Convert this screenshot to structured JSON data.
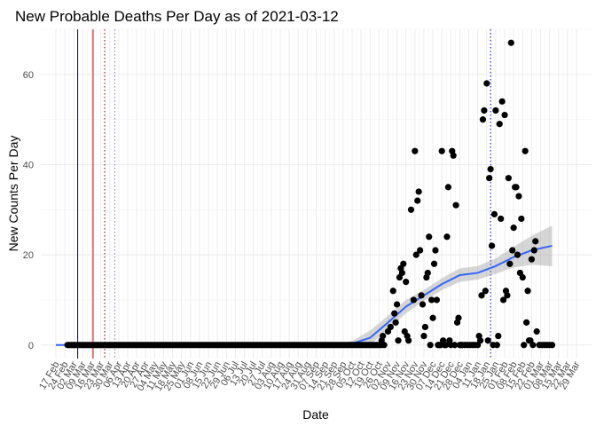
{
  "chart_data": {
    "type": "scatter",
    "title": "New Probable Deaths Per Day as of 2021-03-12",
    "xlabel": "Date",
    "ylabel": "New Counts Per Day",
    "ylim": [
      -3,
      70
    ],
    "yticks": [
      0,
      20,
      40,
      60
    ],
    "x_start": "2020-02-17",
    "x_end": "2021-03-29",
    "xtick_labels": [
      "17 Feb",
      "24 Feb",
      "02 Mar",
      "09 Mar",
      "16 Mar",
      "23 Mar",
      "30 Mar",
      "06 Apr",
      "13 Apr",
      "20 Apr",
      "27 Apr",
      "04 May",
      "11 May",
      "18 May",
      "25 May",
      "01 Jun",
      "08 Jun",
      "15 Jun",
      "22 Jun",
      "29 Jun",
      "06 Jul",
      "13 Jul",
      "20 Jul",
      "27 Jul",
      "03 Aug",
      "10 Aug",
      "17 Aug",
      "24 Aug",
      "31 Aug",
      "07 Sep",
      "14 Sep",
      "21 Sep",
      "28 Sep",
      "05 Oct",
      "12 Oct",
      "19 Oct",
      "26 Oct",
      "02 Nov",
      "09 Nov",
      "16 Nov",
      "23 Nov",
      "30 Nov",
      "07 Dec",
      "14 Dec",
      "21 Dec",
      "28 Dec",
      "04 Jan",
      "11 Jan",
      "18 Jan",
      "25 Jan",
      "01 Feb",
      "08 Feb",
      "15 Feb",
      "22 Feb",
      "01 Mar",
      "08 Mar",
      "15 Mar",
      "22 Mar",
      "29 Mar"
    ],
    "grid": true,
    "reference_lines": [
      {
        "date": "2020-03-05",
        "color": "#00008B",
        "style": "solid"
      },
      {
        "date": "2020-03-17",
        "color": "#CC0000",
        "style": "solid"
      },
      {
        "date": "2020-03-26",
        "color": "#8B0000",
        "style": "dotted"
      },
      {
        "date": "2020-04-03",
        "color": "#9370DB",
        "style": "dotted"
      },
      {
        "date": "2021-01-21",
        "color": "#0000CD",
        "style": "dotted"
      }
    ],
    "series": [
      {
        "name": "new_probable_deaths",
        "type": "scatter",
        "color": "#000000",
        "points": [
          [
            "2020-10-28",
            1
          ],
          [
            "2020-10-29",
            2
          ],
          [
            "2020-10-30",
            0
          ],
          [
            "2020-11-02",
            3
          ],
          [
            "2020-11-04",
            4
          ],
          [
            "2020-11-06",
            12
          ],
          [
            "2020-11-07",
            7
          ],
          [
            "2020-11-08",
            5
          ],
          [
            "2020-11-09",
            9
          ],
          [
            "2020-11-10",
            1
          ],
          [
            "2020-11-11",
            15
          ],
          [
            "2020-11-12",
            17
          ],
          [
            "2020-11-13",
            16
          ],
          [
            "2020-11-14",
            18
          ],
          [
            "2020-11-15",
            3
          ],
          [
            "2020-11-16",
            14
          ],
          [
            "2020-11-17",
            2
          ],
          [
            "2020-11-18",
            1
          ],
          [
            "2020-11-20",
            30
          ],
          [
            "2020-11-22",
            10
          ],
          [
            "2020-11-23",
            43
          ],
          [
            "2020-11-24",
            20
          ],
          [
            "2020-11-25",
            32
          ],
          [
            "2020-11-26",
            34
          ],
          [
            "2020-11-27",
            21
          ],
          [
            "2020-11-28",
            11
          ],
          [
            "2020-11-29",
            9
          ],
          [
            "2020-11-30",
            2
          ],
          [
            "2020-12-01",
            4
          ],
          [
            "2020-12-02",
            15
          ],
          [
            "2020-12-03",
            16
          ],
          [
            "2020-12-04",
            24
          ],
          [
            "2020-12-05",
            0
          ],
          [
            "2020-12-06",
            10
          ],
          [
            "2020-12-07",
            6
          ],
          [
            "2020-12-08",
            18
          ],
          [
            "2020-12-09",
            21
          ],
          [
            "2020-12-10",
            10
          ],
          [
            "2020-12-11",
            0
          ],
          [
            "2020-12-12",
            0
          ],
          [
            "2020-12-13",
            0
          ],
          [
            "2020-12-14",
            43
          ],
          [
            "2020-12-15",
            1
          ],
          [
            "2020-12-16",
            0
          ],
          [
            "2020-12-17",
            0
          ],
          [
            "2020-12-18",
            24
          ],
          [
            "2020-12-19",
            35
          ],
          [
            "2020-12-20",
            1
          ],
          [
            "2020-12-21",
            0
          ],
          [
            "2020-12-22",
            43
          ],
          [
            "2020-12-23",
            42
          ],
          [
            "2020-12-24",
            0
          ],
          [
            "2020-12-25",
            31
          ],
          [
            "2020-12-26",
            5
          ],
          [
            "2020-12-27",
            6
          ],
          [
            "2020-12-28",
            0
          ],
          [
            "2020-12-29",
            0
          ],
          [
            "2020-12-30",
            0
          ],
          [
            "2021-01-01",
            0
          ],
          [
            "2021-01-03",
            0
          ],
          [
            "2021-01-05",
            0
          ],
          [
            "2021-01-07",
            0
          ],
          [
            "2021-01-09",
            0
          ],
          [
            "2021-01-11",
            0
          ],
          [
            "2021-01-12",
            2
          ],
          [
            "2021-01-13",
            1
          ],
          [
            "2021-01-14",
            11
          ],
          [
            "2021-01-15",
            50
          ],
          [
            "2021-01-16",
            52
          ],
          [
            "2021-01-17",
            12
          ],
          [
            "2021-01-18",
            58
          ],
          [
            "2021-01-19",
            1
          ],
          [
            "2021-01-20",
            37
          ],
          [
            "2021-01-21",
            39
          ],
          [
            "2021-01-22",
            22
          ],
          [
            "2021-01-23",
            0
          ],
          [
            "2021-01-24",
            29
          ],
          [
            "2021-01-25",
            52
          ],
          [
            "2021-01-26",
            0
          ],
          [
            "2021-01-27",
            2
          ],
          [
            "2021-01-28",
            49
          ],
          [
            "2021-01-29",
            28
          ],
          [
            "2021-01-30",
            54
          ],
          [
            "2021-01-31",
            10
          ],
          [
            "2021-02-01",
            51
          ],
          [
            "2021-02-02",
            12
          ],
          [
            "2021-02-03",
            11
          ],
          [
            "2021-02-04",
            37
          ],
          [
            "2021-02-05",
            18
          ],
          [
            "2021-02-06",
            67
          ],
          [
            "2021-02-07",
            21
          ],
          [
            "2021-02-08",
            26
          ],
          [
            "2021-02-09",
            35
          ],
          [
            "2021-02-10",
            35
          ],
          [
            "2021-02-11",
            20
          ],
          [
            "2021-02-12",
            33
          ],
          [
            "2021-02-13",
            16
          ],
          [
            "2021-02-14",
            28
          ],
          [
            "2021-02-15",
            15
          ],
          [
            "2021-02-16",
            0
          ],
          [
            "2021-02-17",
            43
          ],
          [
            "2021-02-18",
            5
          ],
          [
            "2021-02-19",
            12
          ],
          [
            "2021-02-20",
            1
          ],
          [
            "2021-02-21",
            1
          ],
          [
            "2021-02-22",
            19
          ],
          [
            "2021-02-23",
            0
          ],
          [
            "2021-02-24",
            21
          ],
          [
            "2021-02-25",
            23
          ],
          [
            "2021-02-26",
            3
          ],
          [
            "2021-02-28",
            0
          ],
          [
            "2021-03-02",
            0
          ],
          [
            "2021-03-04",
            0
          ],
          [
            "2021-03-06",
            0
          ],
          [
            "2021-03-08",
            0
          ],
          [
            "2021-03-10",
            0
          ]
        ]
      },
      {
        "name": "smooth_trend",
        "type": "line",
        "color": "#3366FF",
        "points": [
          [
            "2020-09-21",
            0
          ],
          [
            "2020-10-05",
            0.3
          ],
          [
            "2020-10-19",
            1.6
          ],
          [
            "2020-11-02",
            5.0
          ],
          [
            "2020-11-16",
            8.5
          ],
          [
            "2020-11-30",
            11.0
          ],
          [
            "2020-12-14",
            13.5
          ],
          [
            "2020-12-28",
            15.5
          ],
          [
            "2021-01-11",
            16.0
          ],
          [
            "2021-01-25",
            17.5
          ],
          [
            "2021-02-08",
            19.5
          ],
          [
            "2021-02-22",
            21.0
          ],
          [
            "2021-03-10",
            22.0
          ]
        ],
        "ci_lower": [
          0,
          -0.3,
          0.0,
          3.5,
          7.0,
          9.8,
          12.2,
          14.0,
          14.5,
          15.8,
          17.2,
          17.8,
          17.5
        ],
        "ci_upper": [
          0,
          0.9,
          3.2,
          6.5,
          10.0,
          12.2,
          14.8,
          17.0,
          17.5,
          19.2,
          21.8,
          24.2,
          26.5
        ]
      }
    ]
  }
}
